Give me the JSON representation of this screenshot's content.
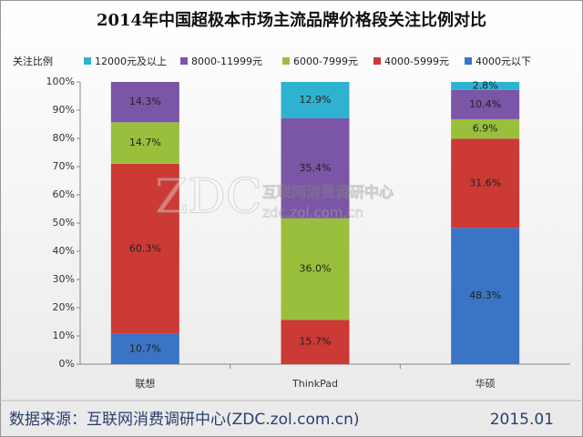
{
  "chart_data": {
    "type": "stacked_bar",
    "title": "2014年中国超极本市场主流品牌价格段关注比例对比",
    "y_label": "关注比例",
    "categories": [
      "联想",
      "ThinkPad",
      "华硕"
    ],
    "series": [
      {
        "name": "4000元以下",
        "color": "#3a74c4",
        "values": [
          10.7,
          null,
          48.3
        ],
        "value_labels": [
          "10.7%",
          null,
          "48.3%"
        ]
      },
      {
        "name": "4000-5999元",
        "color": "#cc3a36",
        "values": [
          60.3,
          15.7,
          31.6
        ],
        "value_labels": [
          "60.3%",
          "15.7%",
          "31.6%"
        ]
      },
      {
        "name": "6000-7999元",
        "color": "#9abf3c",
        "values": [
          14.7,
          36.0,
          6.9
        ],
        "value_labels": [
          "14.7%",
          "36.0%",
          "6.9%"
        ]
      },
      {
        "name": "8000-11999元",
        "color": "#7b55a6",
        "values": [
          14.3,
          35.4,
          10.4
        ],
        "value_labels": [
          "14.3%",
          "35.4%",
          "10.4%"
        ]
      },
      {
        "name": "12000元及以上",
        "color": "#2fb2cf",
        "values": [
          null,
          12.9,
          2.8
        ],
        "value_labels": [
          null,
          "12.9%",
          "2.8%"
        ]
      }
    ],
    "ylim": [
      0,
      100
    ],
    "yticks": [
      {
        "value": 0,
        "label": "0%"
      },
      {
        "value": 10,
        "label": "10%"
      },
      {
        "value": 20,
        "label": "20%"
      },
      {
        "value": 30,
        "label": "30%"
      },
      {
        "value": 40,
        "label": "40%"
      },
      {
        "value": 50,
        "label": "50%"
      },
      {
        "value": 60,
        "label": "60%"
      },
      {
        "value": 70,
        "label": "70%"
      },
      {
        "value": 80,
        "label": "80%"
      },
      {
        "value": 90,
        "label": "90%"
      },
      {
        "value": 100,
        "label": "100%"
      }
    ],
    "legend": "top",
    "watermark": {
      "logo": "ZDC",
      "name": "互联网消费调研中心",
      "url": "zdc.zol.com.cn"
    },
    "source": "数据来源：互联网消费调研中心(ZDC.zol.com.cn)",
    "date": "2015.01"
  }
}
